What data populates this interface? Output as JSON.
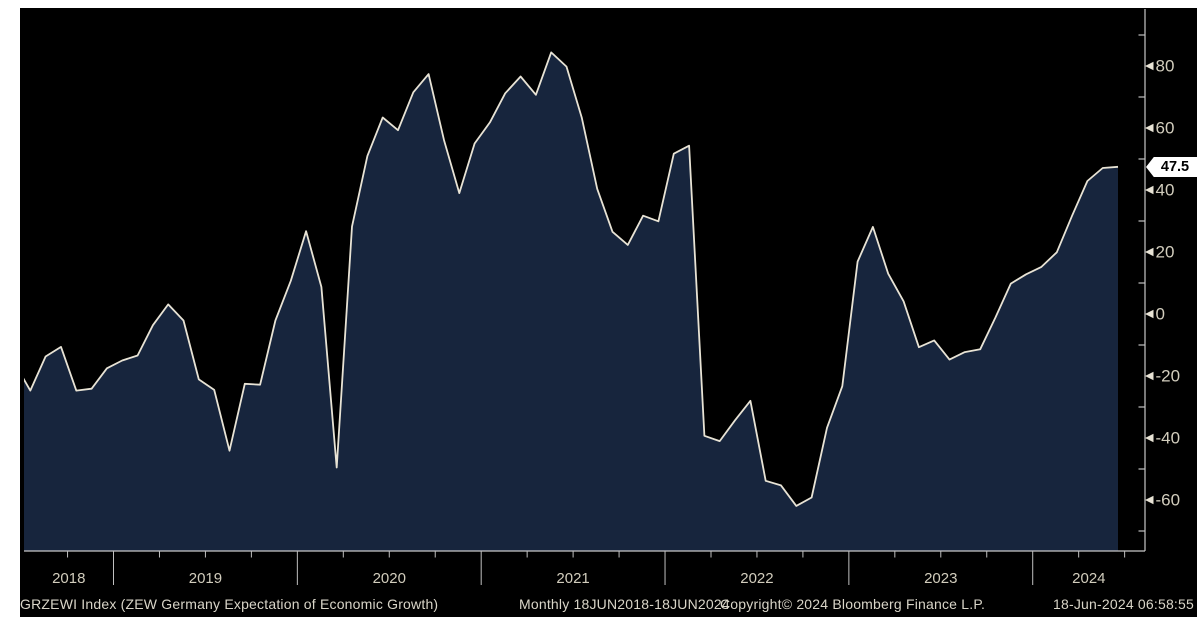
{
  "footer": {
    "security_line": "GRZEWI Index (ZEW Germany Expectation of Economic Growth)",
    "periodicity": "Monthly 18JUN2018-18JUN2024",
    "copyright": "Copyright© 2024 Bloomberg Finance L.P.",
    "timestamp": "18-Jun-2024 06:58:55"
  },
  "badge": {
    "last_value_label": "47.5"
  },
  "y_axis": {
    "major_ticks": [
      80,
      60,
      40,
      20,
      0,
      -20,
      -40,
      -60
    ],
    "minor_ticks": [
      90,
      70,
      50,
      30,
      10,
      -10,
      -30,
      -50,
      -70
    ]
  },
  "x_axis": {
    "year_labels": [
      "2018",
      "2019",
      "2020",
      "2021",
      "2022",
      "2023",
      "2024"
    ]
  },
  "colors": {
    "page_bg": "#ffffff",
    "panel_bg": "#000000",
    "area_fill": "#17253d",
    "line": "#e8e3d5",
    "axis": "#c8c8c8",
    "tick": "#c0c0c0",
    "tick_text": "#d2cdbd",
    "footer_text": "#d9d5c8",
    "badge_bg": "#ffffff",
    "badge_text": "#000000"
  },
  "chart_data": {
    "type": "area",
    "title": "GRZEWI Index (ZEW Germany Expectation of Economic Growth)",
    "series_name": "GRZEWI Index",
    "periodicity": "Monthly",
    "date_range": "18JUN2018-18JUN2024",
    "last_value": 47.5,
    "ylim": [
      -76,
      98
    ],
    "grid": false,
    "legend": "none",
    "x": [
      "2018-06",
      "2018-07",
      "2018-08",
      "2018-09",
      "2018-10",
      "2018-11",
      "2018-12",
      "2019-01",
      "2019-02",
      "2019-03",
      "2019-04",
      "2019-05",
      "2019-06",
      "2019-07",
      "2019-08",
      "2019-09",
      "2019-10",
      "2019-11",
      "2019-12",
      "2020-01",
      "2020-02",
      "2020-03",
      "2020-04",
      "2020-05",
      "2020-06",
      "2020-07",
      "2020-08",
      "2020-09",
      "2020-10",
      "2020-11",
      "2020-12",
      "2021-01",
      "2021-02",
      "2021-03",
      "2021-04",
      "2021-05",
      "2021-06",
      "2021-07",
      "2021-08",
      "2021-09",
      "2021-10",
      "2021-11",
      "2021-12",
      "2022-01",
      "2022-02",
      "2022-03",
      "2022-04",
      "2022-05",
      "2022-06",
      "2022-07",
      "2022-08",
      "2022-09",
      "2022-10",
      "2022-11",
      "2022-12",
      "2023-01",
      "2023-02",
      "2023-03",
      "2023-04",
      "2023-05",
      "2023-06",
      "2023-07",
      "2023-08",
      "2023-09",
      "2023-10",
      "2023-11",
      "2023-12",
      "2024-01",
      "2024-02",
      "2024-03",
      "2024-04",
      "2024-05",
      "2024-06"
    ],
    "values": [
      -16.1,
      -24.7,
      -13.7,
      -10.6,
      -24.7,
      -24.1,
      -17.5,
      -15.0,
      -13.4,
      -3.6,
      3.1,
      -2.1,
      -21.1,
      -24.5,
      -44.1,
      -22.5,
      -22.8,
      -2.1,
      10.7,
      26.7,
      8.7,
      -49.5,
      28.2,
      51.0,
      63.4,
      59.3,
      71.5,
      77.4,
      56.1,
      39.0,
      55.0,
      61.8,
      71.2,
      76.6,
      70.7,
      84.4,
      79.8,
      63.3,
      40.4,
      26.5,
      22.3,
      31.7,
      29.9,
      51.7,
      54.3,
      -39.3,
      -41.0,
      -34.3,
      -28.0,
      -53.8,
      -55.3,
      -61.9,
      -59.2,
      -36.7,
      -23.3,
      16.9,
      28.1,
      13.0,
      4.1,
      -10.7,
      -8.5,
      -14.7,
      -12.3,
      -11.4,
      -1.1,
      9.8,
      12.8,
      15.2,
      19.9,
      31.7,
      42.9,
      47.1,
      47.5
    ]
  }
}
